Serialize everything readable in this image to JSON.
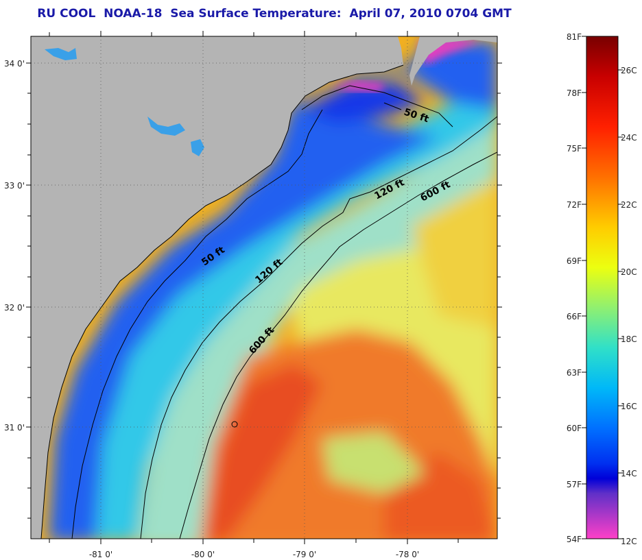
{
  "title": "RU COOL  NOAA-18  Sea Surface Temperature:  April 07, 2010 0704 GMT",
  "map": {
    "lat_ticks": [
      "34 0'",
      "33 0'",
      "32 0'",
      "31 0'"
    ],
    "lon_ticks": [
      "-81 0'",
      "-80 0'",
      "-79 0'",
      "-78 0'"
    ],
    "contours": [
      {
        "label": "50 ft"
      },
      {
        "label": "120 ft"
      },
      {
        "label": "600 ft"
      }
    ],
    "colors": {
      "land": "#b4b4b4",
      "nearshore": "#1e3cf0",
      "shelf": "#20b8f0",
      "midshelf": "#7de0c0",
      "slope": "#f2e840",
      "gulfstream": "#f07828",
      "hot": "#e84a20"
    }
  },
  "colorbar": {
    "fahrenheit": [
      "81F",
      "78F",
      "75F",
      "72F",
      "69F",
      "66F",
      "63F",
      "60F",
      "57F",
      "54F"
    ],
    "celsius": [
      "26C",
      "24C",
      "22C",
      "20C",
      "18C",
      "16C",
      "14C",
      "12C"
    ],
    "gradient_colors": [
      "#7a0000",
      "#d40000",
      "#ff2a00",
      "#ff7a00",
      "#ffd400",
      "#e8ff00",
      "#90f060",
      "#30e0c0",
      "#00c8f0",
      "#0090ff",
      "#0040ff",
      "#0000e0",
      "#8040c0",
      "#ff40c0"
    ]
  }
}
